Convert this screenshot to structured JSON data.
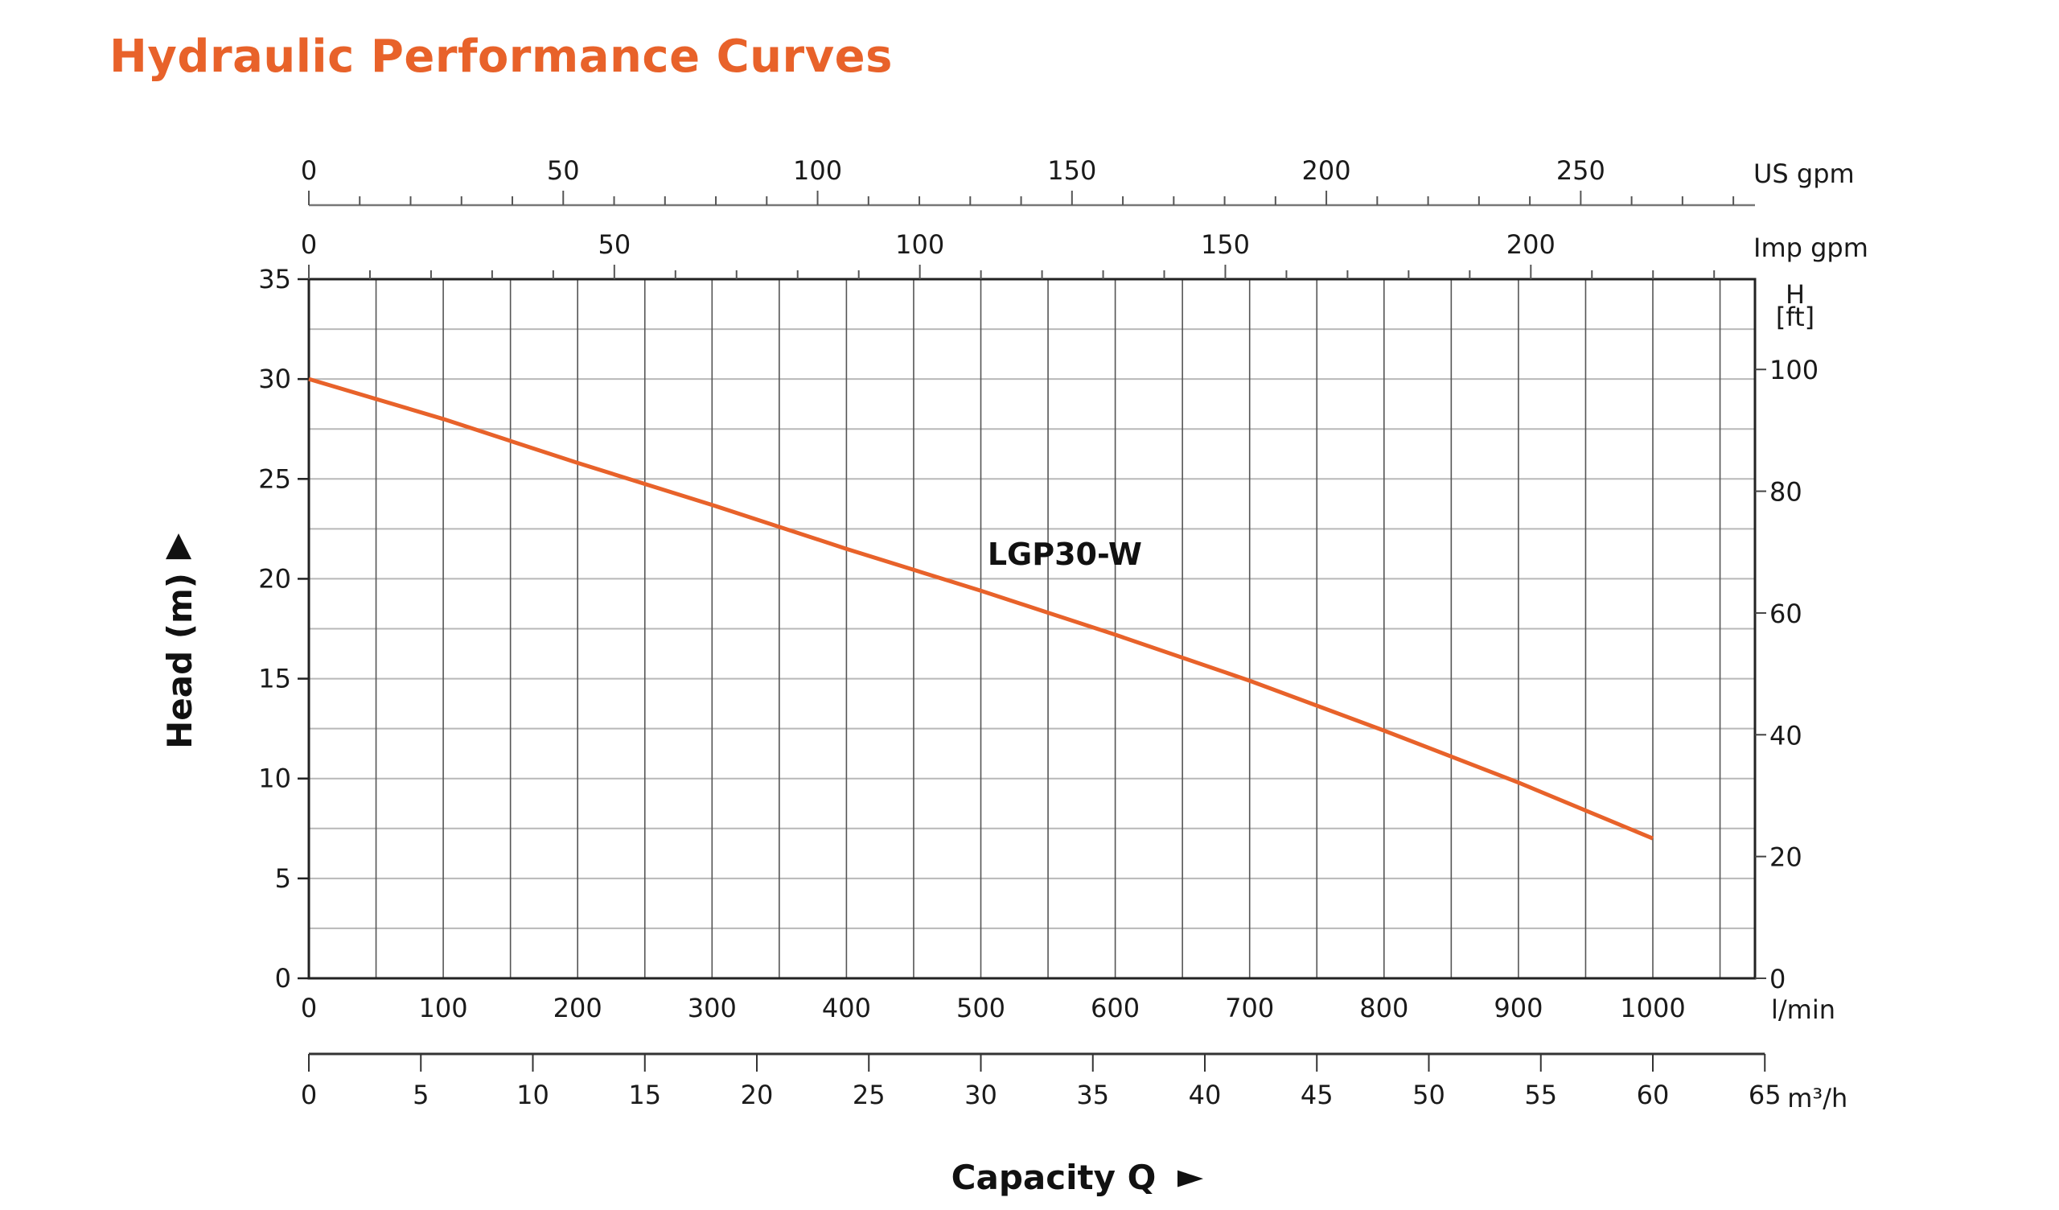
{
  "title": "Hydraulic Performance Curves",
  "chart_data": {
    "type": "line",
    "title": "Hydraulic Performance Curves",
    "xlabel": "Capacity Q",
    "ylabel": "Head (m)",
    "x_unit": "l/min",
    "xlim": [
      0,
      1080
    ],
    "ylim": [
      0,
      35
    ],
    "grid": true,
    "x_ticks": [
      0,
      100,
      200,
      300,
      400,
      500,
      600,
      700,
      800,
      900,
      1000
    ],
    "x_minor_grid_step": 50,
    "y_ticks": [
      0,
      5,
      10,
      15,
      20,
      25,
      30,
      35
    ],
    "y_minor_grid_step": 2.5,
    "series": [
      {
        "name": "LGP30-W",
        "color": "#e8622a",
        "x": [
          0,
          100,
          200,
          300,
          400,
          500,
          600,
          700,
          800,
          900,
          1000
        ],
        "y": [
          30,
          28,
          25.8,
          23.7,
          21.5,
          19.4,
          17.2,
          14.9,
          12.4,
          9.8,
          7
        ]
      }
    ],
    "secondary_axes": {
      "us_gpm": {
        "label": "US gpm",
        "ticks": [
          0,
          50,
          100,
          150,
          200,
          250
        ],
        "minor_step": 10,
        "max": 285
      },
      "imp_gpm": {
        "label": "Imp gpm",
        "ticks": [
          0,
          50,
          100,
          150,
          200
        ],
        "minor_step": 10,
        "max": 237
      },
      "head_ft": {
        "label_top": "H",
        "label_bottom": "[ft]",
        "ticks": [
          0,
          20,
          40,
          60,
          80,
          100
        ]
      },
      "m3h": {
        "label": "m³/h",
        "ticks": [
          0,
          5,
          10,
          15,
          20,
          25,
          30,
          35,
          40,
          45,
          50,
          55,
          60,
          65
        ]
      }
    },
    "y_axis_arrow": "▲",
    "x_axis_arrow": "►"
  }
}
